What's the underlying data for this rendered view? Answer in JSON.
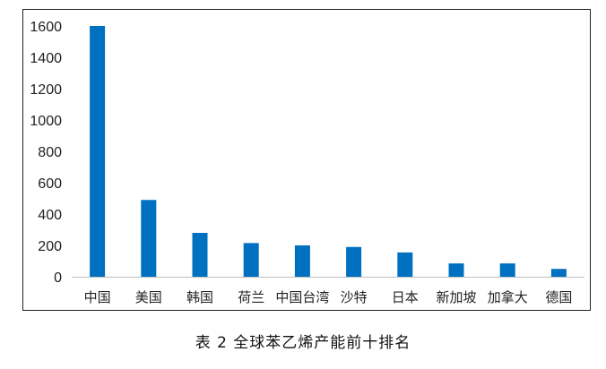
{
  "chart_data": {
    "type": "bar",
    "categories": [
      "中国",
      "美国",
      "韩国",
      "荷兰",
      "中国台湾",
      "沙特",
      "日本",
      "新加坡",
      "加拿大",
      "德国"
    ],
    "values": [
      1600,
      490,
      280,
      215,
      200,
      190,
      155,
      85,
      85,
      50
    ],
    "ylim": [
      0,
      1600
    ],
    "yticks": [
      0,
      200,
      400,
      600,
      800,
      1000,
      1200,
      1400,
      1600
    ],
    "grid": false,
    "legend": false,
    "bar_color": "#0070c0"
  },
  "caption": "表 2  全球苯乙烯产能前十排名"
}
